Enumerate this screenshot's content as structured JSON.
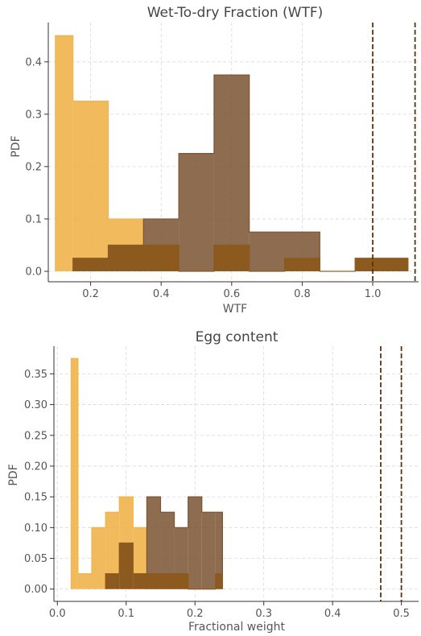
{
  "chart_data": [
    {
      "type": "histogram",
      "title": "Wet-To-dry Fraction (WTF)",
      "xlabel": "WTF",
      "ylabel": "PDF",
      "xlim": [
        0.08,
        1.13
      ],
      "ylim": [
        -0.02,
        0.475
      ],
      "xticks": [
        0.2,
        0.4,
        0.6,
        0.8,
        1.0
      ],
      "xtick_labels": [
        "0.2",
        "0.4",
        "0.6",
        "0.8",
        "1.0"
      ],
      "yticks": [
        0.0,
        0.1,
        0.2,
        0.3,
        0.4
      ],
      "ytick_labels": [
        "0.0",
        "0.1",
        "0.2",
        "0.3",
        "0.4"
      ],
      "grid": true,
      "series": [
        {
          "color": "#f0b34a",
          "opacity": 0.9,
          "edges": [
            0.1,
            0.15,
            0.25,
            0.35
          ],
          "values": [
            0.45,
            0.325,
            0.1
          ]
        },
        {
          "color": "#7a5230",
          "opacity": 0.85,
          "edges": [
            0.35,
            0.45,
            0.55,
            0.65,
            0.85
          ],
          "values": [
            0.1,
            0.225,
            0.375,
            0.075
          ]
        },
        {
          "color": "#8c5a1e",
          "opacity": 1.0,
          "edges": [
            0.15,
            0.25,
            0.45,
            0.55,
            0.65,
            0.75,
            0.85,
            0.95,
            1.1
          ],
          "values": [
            0.025,
            0.05,
            0.0,
            0.05,
            0.0,
            0.025,
            0.0,
            0.025
          ]
        }
      ],
      "vlines": [
        {
          "x": 1.0,
          "color": "#5a3411"
        },
        {
          "x": 1.12,
          "color": "#5a3411"
        }
      ]
    },
    {
      "type": "histogram",
      "title": "Egg content",
      "xlabel": "Fractional weight",
      "ylabel": "PDF",
      "xlim": [
        -0.005,
        0.525
      ],
      "ylim": [
        -0.02,
        0.395
      ],
      "xticks": [
        0.0,
        0.1,
        0.2,
        0.3,
        0.4,
        0.5
      ],
      "xtick_labels": [
        "0.0",
        "0.1",
        "0.2",
        "0.3",
        "0.4",
        "0.5"
      ],
      "yticks": [
        0.0,
        0.05,
        0.1,
        0.15,
        0.2,
        0.25,
        0.3,
        0.35
      ],
      "ytick_labels": [
        "0.00",
        "0.05",
        "0.10",
        "0.15",
        "0.20",
        "0.25",
        "0.30",
        "0.35"
      ],
      "grid": true,
      "series": [
        {
          "color": "#f0b34a",
          "opacity": 0.9,
          "edges": [
            0.02,
            0.03,
            0.05,
            0.07,
            0.09,
            0.11,
            0.13
          ],
          "values": [
            0.375,
            0.025,
            0.1,
            0.125,
            0.15,
            0.1
          ]
        },
        {
          "color": "#7a5230",
          "opacity": 0.85,
          "edges": [
            0.13,
            0.15,
            0.17,
            0.19,
            0.21,
            0.23,
            0.24
          ],
          "values": [
            0.15,
            0.125,
            0.1,
            0.15,
            0.125,
            0.125
          ]
        },
        {
          "color": "#8c5a1e",
          "opacity": 1.0,
          "edges": [
            0.07,
            0.09,
            0.11,
            0.13,
            0.19,
            0.23,
            0.24
          ],
          "values": [
            0.025,
            0.075,
            0.025,
            0.025,
            0.0,
            0.025
          ]
        }
      ],
      "vlines": [
        {
          "x": 0.47,
          "color": "#5a3411"
        },
        {
          "x": 0.5,
          "color": "#5a3411"
        }
      ]
    }
  ]
}
